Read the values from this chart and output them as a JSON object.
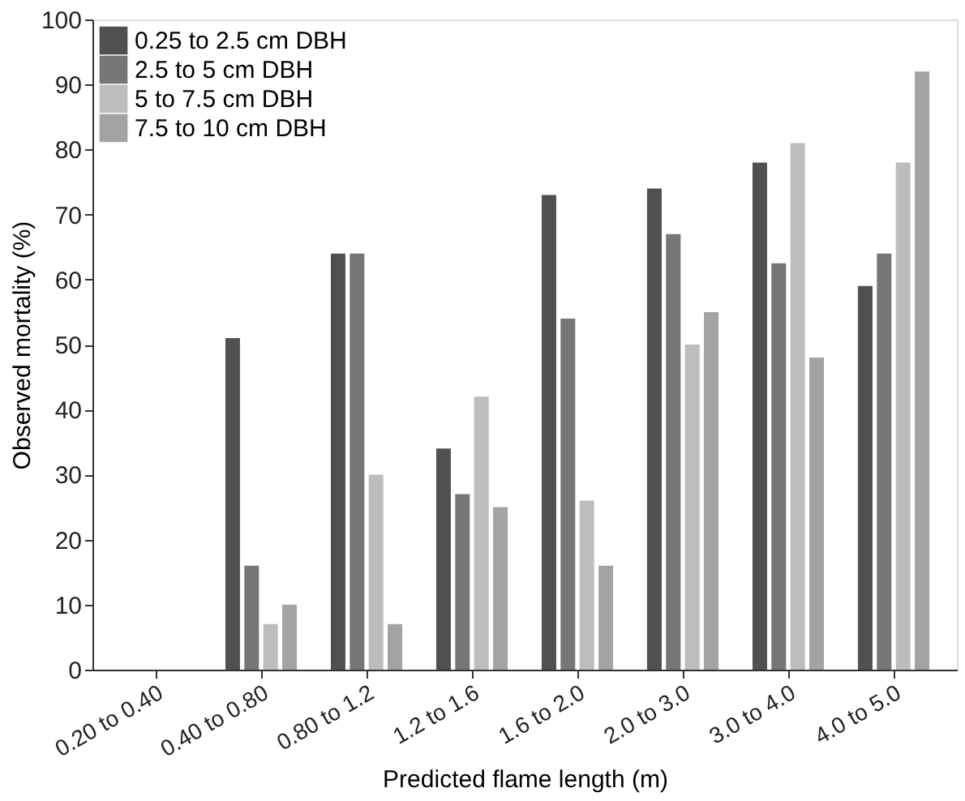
{
  "chart_data": {
    "type": "bar",
    "xlabel": "Predicted flame length (m)",
    "ylabel": "Observed mortality (%)",
    "categories": [
      "0.20 to 0.40",
      "0.40 to 0.80",
      "0.80 to 1.2",
      "1.2 to 1.6",
      "1.6 to 2.0",
      "2.0 to 3.0",
      "3.0 to 4.0",
      "4.0 to 5.0"
    ],
    "series": [
      {
        "name": "0.25 to 2.5 cm DBH",
        "color": "#505050",
        "values": [
          0,
          51,
          64,
          34,
          73,
          74,
          78,
          59
        ]
      },
      {
        "name": "2.5 to 5 cm DBH",
        "color": "#767676",
        "values": [
          0,
          16,
          64,
          27,
          54,
          67,
          62.5,
          64
        ]
      },
      {
        "name": "5 to 7.5 cm DBH",
        "color": "#bdbdbd",
        "values": [
          0,
          7,
          30,
          42,
          26,
          50,
          81,
          78
        ]
      },
      {
        "name": "7.5 to 10 cm DBH",
        "color": "#a3a3a3",
        "values": [
          0,
          10,
          7,
          25,
          16,
          55,
          48,
          92
        ]
      }
    ],
    "ylim": [
      0,
      100
    ],
    "yticks": [
      0,
      10,
      20,
      30,
      40,
      50,
      60,
      70,
      80,
      90,
      100
    ],
    "grid": false,
    "legend": "top left"
  }
}
